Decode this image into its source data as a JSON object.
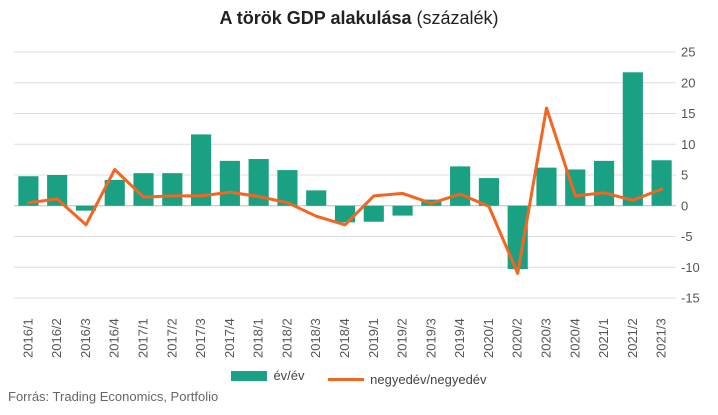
{
  "chart_data": {
    "type": "bar",
    "title": "A török GDP alakulása",
    "subtitle": "(százalék)",
    "categories": [
      "2016/1",
      "2016/2",
      "2016/3",
      "2016/4",
      "2017/1",
      "2017/2",
      "2017/3",
      "2017/4",
      "2018/1",
      "2018/2",
      "2018/3",
      "2018/4",
      "2019/1",
      "2019/2",
      "2019/3",
      "2019/4",
      "2020/1",
      "2020/2",
      "2020/3",
      "2020/4",
      "2021/1",
      "2021/2",
      "2021/3"
    ],
    "series": [
      {
        "name": "év/év",
        "type": "bar",
        "color": "#1aa184",
        "values": [
          4.8,
          5.0,
          -0.8,
          4.2,
          5.3,
          5.3,
          11.6,
          7.3,
          7.6,
          5.8,
          2.5,
          -2.7,
          -2.6,
          -1.6,
          1.0,
          6.4,
          4.5,
          -10.3,
          6.2,
          5.9,
          7.3,
          21.7,
          7.4
        ]
      },
      {
        "name": "negyedév/negyedév",
        "type": "line",
        "color": "#f26522",
        "values": [
          0.5,
          1.1,
          -3.1,
          5.9,
          1.4,
          1.6,
          1.6,
          2.2,
          1.5,
          0.5,
          -1.7,
          -3.1,
          1.6,
          2.0,
          0.4,
          1.9,
          -0.1,
          -11.0,
          15.9,
          1.6,
          2.1,
          0.9,
          2.7
        ]
      }
    ],
    "ylim": [
      -15,
      25
    ],
    "yticks": [
      -15,
      -10,
      -5,
      0,
      5,
      10,
      15,
      20,
      25
    ],
    "y_axis_side": "right",
    "grid": true,
    "legend": "bottom-center"
  },
  "source_text": "Forrás: Trading Economics, Portfolio"
}
